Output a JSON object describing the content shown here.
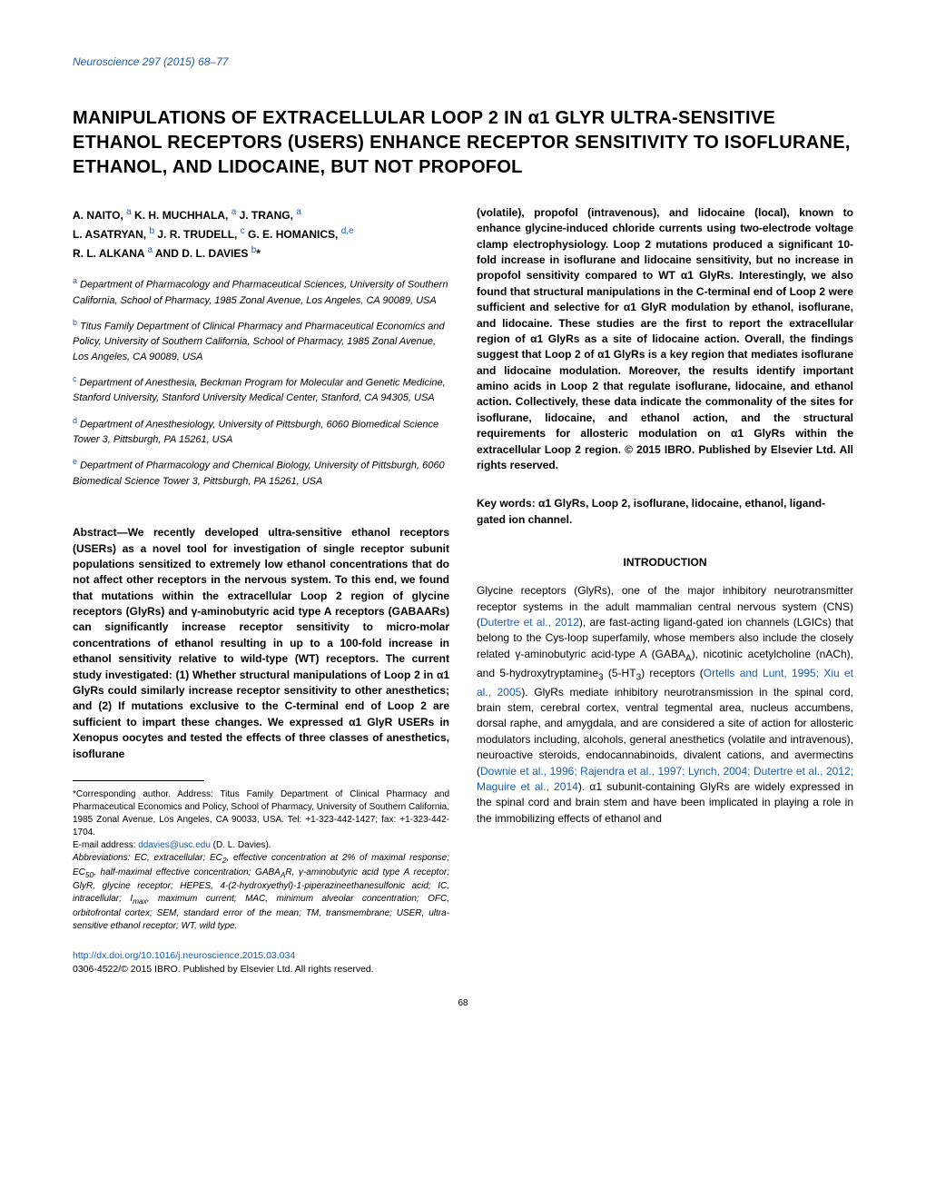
{
  "journal_header": "Neuroscience 297 (2015) 68–77",
  "title": "MANIPULATIONS OF EXTRACELLULAR LOOP 2 IN α1 GLYR ULTRA-SENSITIVE ETHANOL RECEPTORS (USERS) ENHANCE RECEPTOR SENSITIVITY TO ISOFLURANE, ETHANOL, AND LIDOCAINE, BUT NOT PROPOFOL",
  "authors": {
    "line1": "A. NAITO, <sup>a</sup> K. H. MUCHHALA, <sup>a</sup> J. TRANG, <sup>a</sup>",
    "line2": "L. ASATRYAN, <sup>b</sup> J. R. TRUDELL, <sup>c</sup> G. E. HOMANICS, <sup>d,e</sup>",
    "line3": "R. L. ALKANA <sup>a</sup> AND D. L. DAVIES <sup>b</sup>*"
  },
  "affiliations": [
    {
      "label": "a",
      "text": "Department of Pharmacology and Pharmaceutical Sciences, University of Southern California, School of Pharmacy, 1985 Zonal Avenue, Los Angeles, CA 90089, USA"
    },
    {
      "label": "b",
      "text": "Titus Family Department of Clinical Pharmacy and Pharmaceutical Economics and Policy, University of Southern California, School of Pharmacy, 1985 Zonal Avenue, Los Angeles, CA 90089, USA"
    },
    {
      "label": "c",
      "text": "Department of Anesthesia, Beckman Program for Molecular and Genetic Medicine, Stanford University, Stanford University Medical Center, Stanford, CA 94305, USA"
    },
    {
      "label": "d",
      "text": "Department of Anesthesiology, University of Pittsburgh, 6060 Biomedical Science Tower 3, Pittsburgh, PA 15261, USA"
    },
    {
      "label": "e",
      "text": "Department of Pharmacology and Chemical Biology, University of Pittsburgh, 6060 Biomedical Science Tower 3, Pittsburgh, PA 15261, USA"
    }
  ],
  "abstract": {
    "label": "Abstract—",
    "left": "We recently developed ultra-sensitive ethanol receptors (USERs) as a novel tool for investigation of single receptor subunit populations sensitized to extremely low ethanol concentrations that do not affect other receptors in the nervous system. To this end, we found that mutations within the extracellular Loop 2 region of glycine receptors (GlyRs) and γ-aminobutyric acid type A receptors (GABAARs) can significantly increase receptor sensitivity to micro-molar concentrations of ethanol resulting in up to a 100-fold increase in ethanol sensitivity relative to wild-type (WT) receptors. The current study investigated: (1) Whether structural manipulations of Loop 2 in α1 GlyRs could similarly increase receptor sensitivity to other anesthetics; and (2) If mutations exclusive to the C-terminal end of Loop 2 are sufficient to impart these changes. We expressed α1 GlyR USERs in Xenopus oocytes and tested the effects of three classes of anesthetics, isoflurane",
    "right": "(volatile), propofol (intravenous), and lidocaine (local), known to enhance glycine-induced chloride currents using two-electrode voltage clamp electrophysiology. Loop 2 mutations produced a significant 10-fold increase in isoflurane and lidocaine sensitivity, but no increase in propofol sensitivity compared to WT α1 GlyRs. Interestingly, we also found that structural manipulations in the C-terminal end of Loop 2 were sufficient and selective for α1 GlyR modulation by ethanol, isoflurane, and lidocaine. These studies are the first to report the extracellular region of α1 GlyRs as a site of lidocaine action. Overall, the findings suggest that Loop 2 of α1 GlyRs is a key region that mediates isoflurane and lidocaine modulation. Moreover, the results identify important amino acids in Loop 2 that regulate isoflurane, lidocaine, and ethanol action. Collectively, these data indicate the commonality of the sites for isoflurane, lidocaine, and ethanol action, and the structural requirements for allosteric modulation on α1 GlyRs within the extracellular Loop 2 region. © 2015 IBRO. Published by Elsevier Ltd. All rights reserved."
  },
  "keywords": "Key words: α1 GlyRs, Loop 2, isoflurane, lidocaine, ethanol, ligand-gated ion channel.",
  "intro_heading": "INTRODUCTION",
  "intro_text": "Glycine receptors (GlyRs), one of the major inhibitory neurotransmitter receptor systems in the adult mammalian central nervous system (CNS) (<span class=\"link\">Dutertre et al., 2012</span>), are fast-acting ligand-gated ion channels (LGICs) that belong to the Cys-loop superfamily, whose members also include the closely related γ-aminobutyric acid-type A (GABA<sub>A</sub>), nicotinic acetylcholine (nACh), and 5-hydroxytryptamine<sub>3</sub> (5-HT<sub>3</sub>) receptors (<span class=\"link\">Ortells and Lunt, 1995; Xiu et al., 2005</span>). GlyRs mediate inhibitory neurotransmission in the spinal cord, brain stem, cerebral cortex, ventral tegmental area, nucleus accumbens, dorsal raphe, and amygdala, and are considered a site of action for allosteric modulators including, alcohols, general anesthetics (volatile and intravenous), neuroactive steroids, endocannabinoids, divalent cations, and avermectins (<span class=\"link\">Downie et al., 1996; Rajendra et al., 1997; Lynch, 2004; Dutertre et al., 2012; Maguire et al., 2014</span>). α1 subunit-containing GlyRs are widely expressed in the spinal cord and brain stem and have been implicated in playing a role in the immobilizing effects of ethanol and",
  "footnotes": {
    "corresponding": "*Corresponding author. Address: Titus Family Department of Clinical Pharmacy and Pharmaceutical Economics and Policy, School of Pharmacy, University of Southern California, 1985 Zonal Avenue, Los Angeles, CA 90033, USA. Tel: +1-323-442-1427; fax: +1-323-442-1704.",
    "email_label": "E-mail address: ",
    "email": "ddavies@usc.edu",
    "email_suffix": " (D. L. Davies).",
    "abbreviations": "Abbreviations: EC, extracellular; EC<sub>2</sub>, effective concentration at 2% of maximal response; EC<sub>50</sub>, half-maximal effective concentration; GABA<sub>A</sub>R, γ-aminobutyric acid type A receptor; GlyR, glycine receptor; HEPES, 4-(2-hydroxyethyl)-1-piperazineethanesulfonic acid; IC, intracellular; I<sub>max</sub>, maximum current; MAC, minimum alveolar concentration; OFC, orbitofrontal cortex; SEM, standard error of the mean; TM, transmembrane; USER, ultra-sensitive ethanol receptor; WT, wild type."
  },
  "doi": {
    "url": "http://dx.doi.org/10.1016/j.neuroscience.2015.03.034",
    "copyright": "0306-4522/© 2015 IBRO. Published by Elsevier Ltd. All rights reserved."
  },
  "page_number": "68"
}
